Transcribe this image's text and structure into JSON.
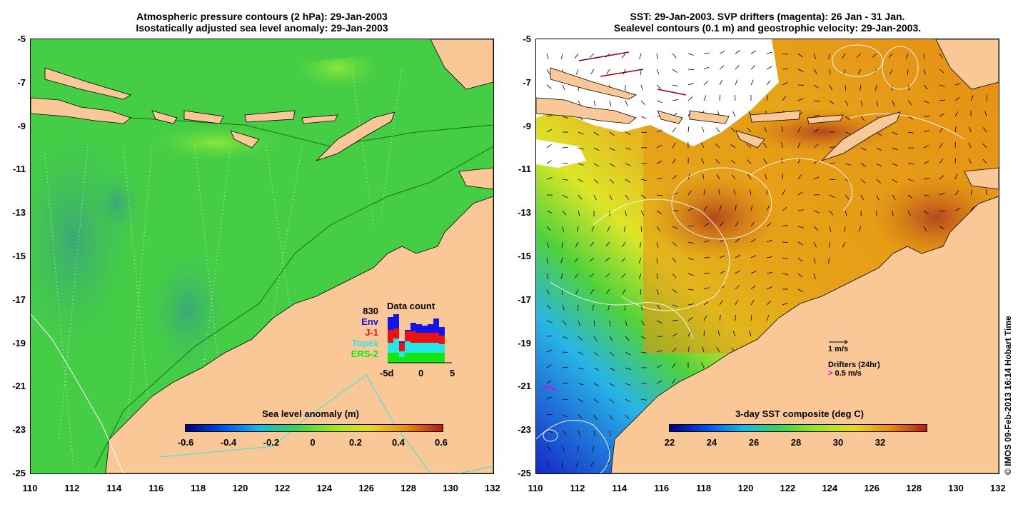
{
  "left_panel": {
    "title_line1": "Atmospheric pressure contours (2 hPa): 29-Jan-2003",
    "title_line2": "Isostatically adjusted sea level anomaly: 29-Jan-2003",
    "colorbar_title": "Sea level anomaly (m)",
    "colorbar_ticks": [
      "-0.6",
      "-0.4",
      "-0.2",
      "0",
      "0.2",
      "0.4",
      "0.6"
    ],
    "data_count": {
      "title": "Data count",
      "total": "830",
      "missions": [
        {
          "name": "Env",
          "color": "#1414e6"
        },
        {
          "name": "J-1",
          "color": "#e61414"
        },
        {
          "name": "Topex",
          "color": "#28e6e6"
        },
        {
          "name": "ERS-2",
          "color": "#14e614"
        }
      ],
      "x_ticks": [
        "-5d",
        "0",
        "5"
      ]
    }
  },
  "right_panel": {
    "title_line1": "SST: 29-Jan-2003. SVP drifters (magenta): 26 Jan - 31 Jan.",
    "title_line2": "Sealevel contours (0.1 m) and geostrophic velocity: 29-Jan-2003.",
    "colorbar_title": "3-day SST composite (deg C)",
    "colorbar_ticks": [
      "22",
      "24",
      "26",
      "28",
      "30",
      "32"
    ],
    "velocity_scale_label": "1 m/s",
    "drifters_label": "Drifters (24hr)",
    "drifters_scale_label": "0.5 m/s",
    "drifter_color": "#e600e6"
  },
  "axes": {
    "y_ticks": [
      "-5",
      "-7",
      "-9",
      "-11",
      "-13",
      "-15",
      "-17",
      "-19",
      "-21",
      "-23",
      "-25"
    ],
    "x_ticks": [
      "110",
      "112",
      "114",
      "116",
      "118",
      "120",
      "122",
      "124",
      "126",
      "128",
      "130",
      "132"
    ]
  },
  "copyright": "© IMOS 09-Feb-2013 16:14 Hobart Time",
  "colors": {
    "land": "#fac896",
    "sea_green": "#3cd23c",
    "sst_orange": "#e69614"
  }
}
